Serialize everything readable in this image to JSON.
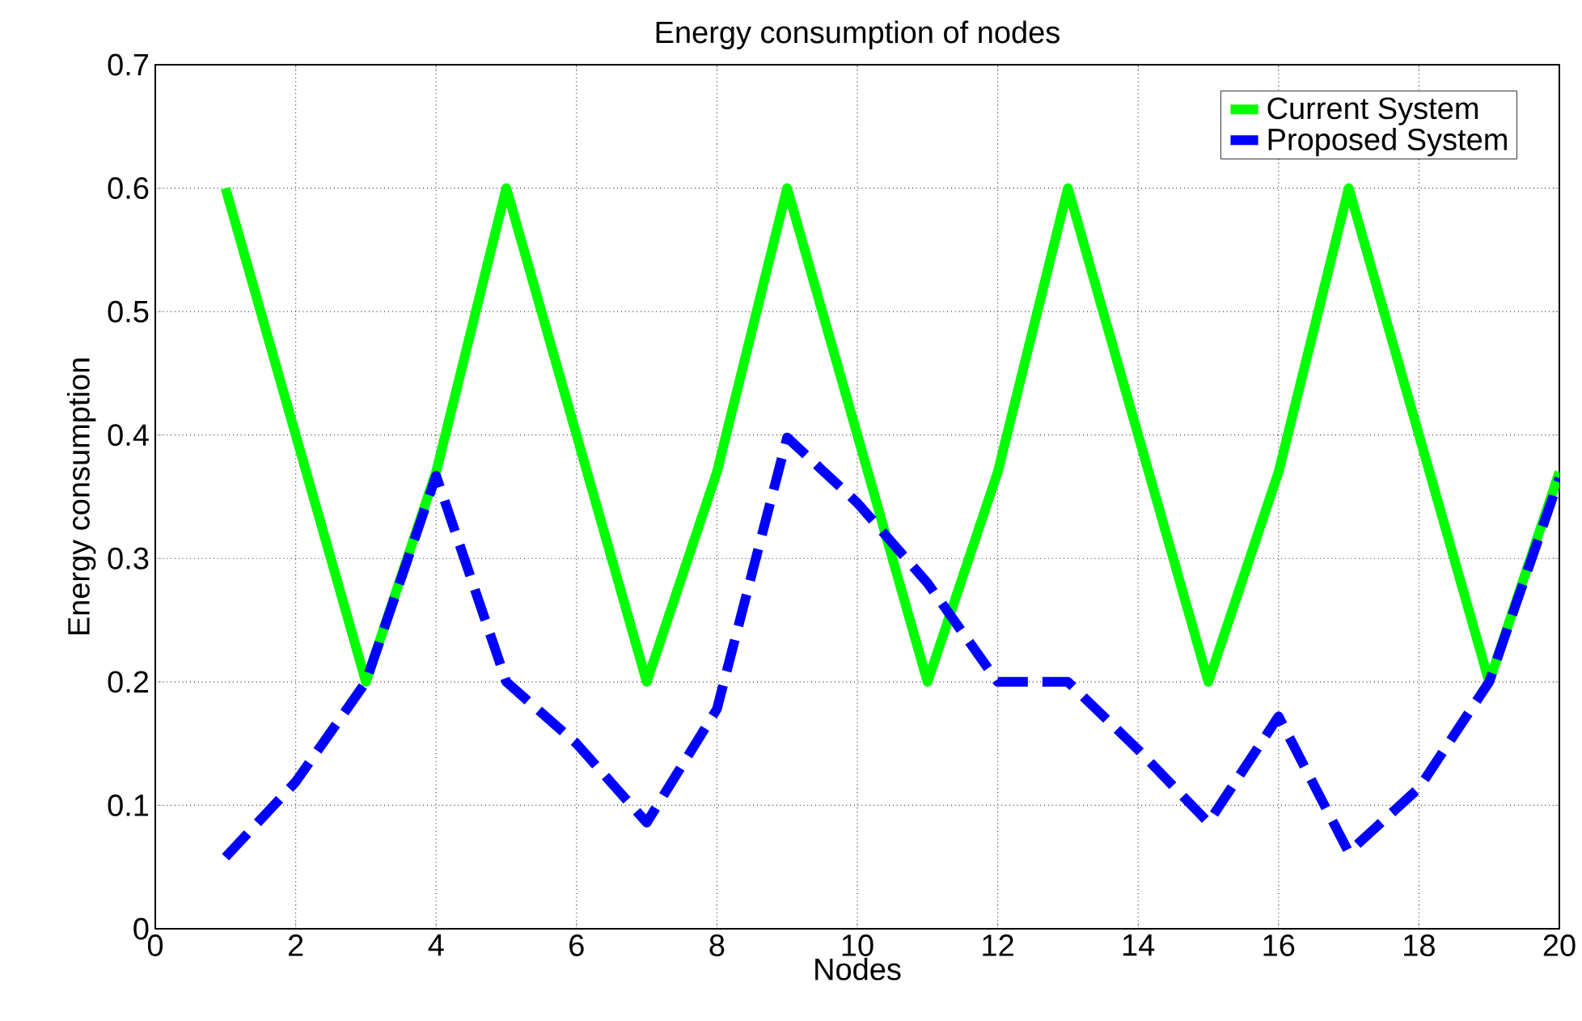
{
  "chart_data": {
    "type": "line",
    "title": "Energy consumption of nodes",
    "xlabel": "Nodes",
    "ylabel": "Energy consumption",
    "x": [
      1,
      2,
      3,
      4,
      5,
      6,
      7,
      8,
      9,
      10,
      11,
      12,
      13,
      14,
      15,
      16,
      17,
      18,
      19,
      20
    ],
    "series": [
      {
        "name": "Current System",
        "color": "#00ff00",
        "line_style": "solid",
        "values": [
          0.6,
          0.4,
          0.2,
          0.37,
          0.6,
          0.4,
          0.2,
          0.37,
          0.6,
          0.4,
          0.2,
          0.37,
          0.6,
          0.4,
          0.2,
          0.37,
          0.6,
          0.4,
          0.2,
          0.37
        ]
      },
      {
        "name": "Proposed System",
        "color": "#0000ff",
        "line_style": "dashed",
        "values": [
          0.058,
          0.119,
          0.2,
          0.367,
          0.2,
          0.15,
          0.086,
          0.178,
          0.398,
          0.345,
          0.28,
          0.2,
          0.2,
          0.145,
          0.086,
          0.172,
          0.062,
          0.114,
          0.2,
          0.365
        ]
      }
    ],
    "xlim": [
      0,
      20
    ],
    "xticks": [
      0,
      2,
      4,
      6,
      8,
      10,
      12,
      14,
      16,
      18,
      20
    ],
    "ylim": [
      0,
      0.7
    ],
    "yticks": [
      0,
      0.1,
      0.2,
      0.3,
      0.4,
      0.5,
      0.6,
      0.7
    ],
    "grid": true,
    "legend": "top right",
    "marker": "none"
  }
}
